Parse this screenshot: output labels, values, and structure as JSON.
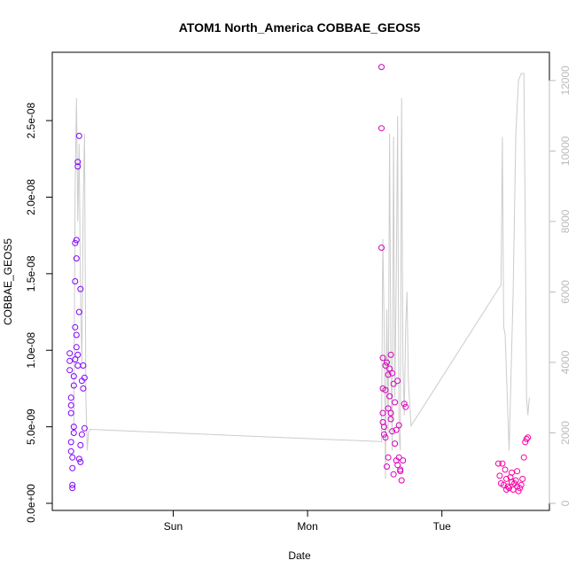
{
  "chart_data": {
    "type": "scatter",
    "title": "ATOM1 North_America COBBAE_GEOS5",
    "xlabel": "Date",
    "ylabel": "COBBAE_GEOS5",
    "x_unit": "days since Saturday 00:00",
    "xlim": [
      0.1,
      3.8
    ],
    "ylim": [
      0,
      2.9e-08
    ],
    "y2lim": [
      0,
      12600
    ],
    "x_ticks": [
      {
        "value": 1,
        "label": "Sun"
      },
      {
        "value": 2,
        "label": "Mon"
      },
      {
        "value": 3,
        "label": "Tue"
      }
    ],
    "y_ticks": [
      {
        "value": 0,
        "label": "0.0e+00"
      },
      {
        "value": 5e-09,
        "label": "5.0e-09"
      },
      {
        "value": 1e-08,
        "label": "1.0e-08"
      },
      {
        "value": 1.5e-08,
        "label": "1.5e-08"
      },
      {
        "value": 2e-08,
        "label": "2.0e-08"
      },
      {
        "value": 2.5e-08,
        "label": "2.5e-08"
      }
    ],
    "y2_ticks": [
      {
        "value": 0,
        "label": "0"
      },
      {
        "value": 2000,
        "label": "2000"
      },
      {
        "value": 4000,
        "label": "4000"
      },
      {
        "value": 6000,
        "label": "6000"
      },
      {
        "value": 8000,
        "label": "8000"
      },
      {
        "value": 10000,
        "label": "10000"
      },
      {
        "value": 12000,
        "label": "12000"
      }
    ],
    "grid": false,
    "legend": "none",
    "secondary_series": {
      "type": "line",
      "color": "#cccccc",
      "points": [
        [
          0.26,
          2000
        ],
        [
          0.27,
          9000
        ],
        [
          0.28,
          11500
        ],
        [
          0.29,
          8000
        ],
        [
          0.3,
          10200
        ],
        [
          0.31,
          6000
        ],
        [
          0.32,
          4000
        ],
        [
          0.33,
          8500
        ],
        [
          0.34,
          10500
        ],
        [
          0.35,
          3000
        ],
        [
          0.36,
          1500
        ],
        [
          0.37,
          2000
        ],
        [
          0.38,
          2100
        ],
        [
          2.55,
          1750
        ],
        [
          2.56,
          7500
        ],
        [
          2.57,
          5000
        ],
        [
          2.58,
          700
        ],
        [
          2.59,
          5500
        ],
        [
          2.6,
          2000
        ],
        [
          2.61,
          10500
        ],
        [
          2.62,
          4000
        ],
        [
          2.63,
          1500
        ],
        [
          2.64,
          10400
        ],
        [
          2.65,
          3000
        ],
        [
          2.66,
          6500
        ],
        [
          2.67,
          11000
        ],
        [
          2.68,
          2000
        ],
        [
          2.69,
          1500
        ],
        [
          2.7,
          11500
        ],
        [
          2.71,
          4000
        ],
        [
          2.72,
          2500
        ],
        [
          2.73,
          5000
        ],
        [
          2.74,
          6000
        ],
        [
          2.75,
          3500
        ],
        [
          2.77,
          2200
        ],
        [
          3.44,
          6200
        ],
        [
          3.45,
          10400
        ],
        [
          3.46,
          5000
        ],
        [
          3.47,
          4800
        ],
        [
          3.5,
          1500
        ],
        [
          3.53,
          6000
        ],
        [
          3.55,
          10500
        ],
        [
          3.57,
          12000
        ],
        [
          3.59,
          12200
        ],
        [
          3.61,
          12200
        ],
        [
          3.62,
          8000
        ],
        [
          3.63,
          3000
        ],
        [
          3.64,
          2500
        ],
        [
          3.65,
          3000
        ]
      ]
    },
    "series": [
      {
        "color_from": "#7f00ff",
        "color_to": "#ff00a0",
        "points": [
          [
            0.23,
            8.7e-09
          ],
          [
            0.23,
            9.8e-09
          ],
          [
            0.24,
            6.9e-09
          ],
          [
            0.24,
            3.4e-09
          ],
          [
            0.25,
            1.2e-09
          ],
          [
            0.25,
            2.3e-09
          ],
          [
            0.26,
            4.6e-09
          ],
          [
            0.26,
            8.3e-09
          ],
          [
            0.27,
            9.4e-09
          ],
          [
            0.27,
            1.7e-08
          ],
          [
            0.27,
            1.45e-08
          ],
          [
            0.28,
            1.6e-08
          ],
          [
            0.28,
            1.1e-08
          ],
          [
            0.29,
            9e-09
          ],
          [
            0.29,
            2.2e-08
          ],
          [
            0.3,
            2.4e-08
          ],
          [
            0.3,
            1.25e-08
          ],
          [
            0.31,
            1.4e-08
          ],
          [
            0.31,
            2.7e-09
          ],
          [
            0.32,
            4.5e-09
          ],
          [
            0.32,
            8e-09
          ],
          [
            0.33,
            7.5e-09
          ],
          [
            0.33,
            9e-09
          ],
          [
            0.34,
            8.2e-09
          ],
          [
            0.34,
            4.9e-09
          ],
          [
            0.25,
            1e-09
          ],
          [
            0.24,
            6.4e-09
          ],
          [
            0.26,
            7.7e-09
          ],
          [
            0.28,
            1.02e-08
          ],
          [
            0.29,
            9.7e-09
          ],
          [
            0.3,
            2.9e-09
          ],
          [
            0.31,
            3.8e-09
          ],
          [
            0.24,
            5.9e-09
          ],
          [
            0.27,
            1.15e-08
          ],
          [
            0.28,
            1.72e-08
          ],
          [
            0.29,
            2.23e-08
          ],
          [
            0.26,
            5e-09
          ],
          [
            0.24,
            4e-09
          ],
          [
            0.23,
            9.3e-09
          ],
          [
            0.25,
            3e-09
          ],
          [
            2.55,
            1.67e-08
          ],
          [
            2.55,
            2.85e-08
          ],
          [
            2.55,
            2.45e-08
          ],
          [
            2.56,
            9.5e-09
          ],
          [
            2.56,
            7.5e-09
          ],
          [
            2.57,
            5e-09
          ],
          [
            2.58,
            4.3e-09
          ],
          [
            2.59,
            9.2e-09
          ],
          [
            2.6,
            3e-09
          ],
          [
            2.61,
            8.8e-09
          ],
          [
            2.62,
            5.5e-09
          ],
          [
            2.63,
            8.5e-09
          ],
          [
            2.64,
            7.8e-09
          ],
          [
            2.65,
            6.6e-09
          ],
          [
            2.66,
            4.8e-09
          ],
          [
            2.67,
            2.5e-09
          ],
          [
            2.68,
            3e-09
          ],
          [
            2.69,
            2.2e-09
          ],
          [
            2.7,
            1.5e-09
          ],
          [
            2.71,
            2.8e-09
          ],
          [
            2.72,
            6.5e-09
          ],
          [
            2.73,
            6.3e-09
          ],
          [
            2.56,
            5.3e-09
          ],
          [
            2.57,
            4.5e-09
          ],
          [
            2.58,
            9e-09
          ],
          [
            2.59,
            2.4e-09
          ],
          [
            2.6,
            6.2e-09
          ],
          [
            2.61,
            7e-09
          ],
          [
            2.62,
            9.7e-09
          ],
          [
            2.63,
            4.7e-09
          ],
          [
            2.64,
            1.9e-09
          ],
          [
            2.65,
            3.9e-09
          ],
          [
            2.66,
            2.8e-09
          ],
          [
            2.67,
            8e-09
          ],
          [
            2.68,
            5.1e-09
          ],
          [
            2.69,
            2.1e-09
          ],
          [
            2.56,
            5.9e-09
          ],
          [
            2.58,
            7.4e-09
          ],
          [
            2.6,
            8.4e-09
          ],
          [
            2.62,
            5.9e-09
          ],
          [
            3.42,
            2.6e-09
          ],
          [
            3.43,
            1.8e-09
          ],
          [
            3.44,
            1.3e-09
          ],
          [
            3.45,
            2.6e-09
          ],
          [
            3.46,
            1.2e-09
          ],
          [
            3.47,
            2.2e-09
          ],
          [
            3.48,
            1.6e-09
          ],
          [
            3.49,
            1.1e-09
          ],
          [
            3.5,
            1e-09
          ],
          [
            3.51,
            1.7e-09
          ],
          [
            3.52,
            2e-09
          ],
          [
            3.53,
            9e-10
          ],
          [
            3.54,
            1.3e-09
          ],
          [
            3.55,
            1.5e-09
          ],
          [
            3.56,
            2.1e-09
          ],
          [
            3.57,
            8e-10
          ],
          [
            3.58,
            1e-09
          ],
          [
            3.59,
            1.2e-09
          ],
          [
            3.6,
            1.6e-09
          ],
          [
            3.61,
            3e-09
          ],
          [
            3.62,
            4e-09
          ],
          [
            3.63,
            4.2e-09
          ],
          [
            3.64,
            4.3e-09
          ],
          [
            3.48,
            9e-10
          ],
          [
            3.52,
            1.4e-09
          ],
          [
            3.56,
            1.1e-09
          ]
        ]
      }
    ]
  }
}
